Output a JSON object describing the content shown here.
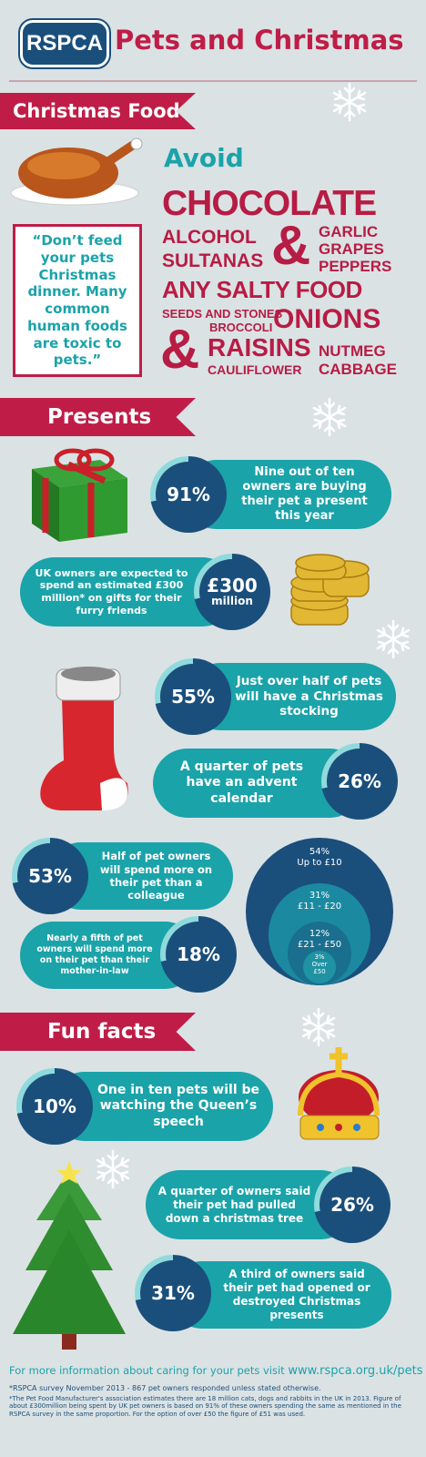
{
  "header": {
    "logo": "RSPCA",
    "title": "Pets and Christmas"
  },
  "food": {
    "heading": "Christmas Food",
    "avoid": "Avoid",
    "quote": "“Don’t feed your pets Christmas dinner. Many common human foods are toxic to pets.”",
    "words": [
      "CHOCOLATE",
      "ALCOHOL",
      "SULTANAS",
      "&",
      "GARLIC",
      "GRAPES",
      "PEPPERS",
      "ANY SALTY FOOD",
      "SEEDS AND STONES",
      "BROCCOLI",
      "ONIONS",
      "&",
      "RAISINS",
      "NUTMEG",
      "CAULIFLOWER",
      "CABBAGE"
    ]
  },
  "presents": {
    "heading": "Presents",
    "stats": [
      {
        "value": "91%",
        "text": "Nine out of ten owners are buying their pet a present this year"
      },
      {
        "value": "£300",
        "value_sub": "million",
        "text": "UK owners are expected to spend an estimated £300 million* on gifts for their furry friends"
      },
      {
        "value": "55%",
        "text": "Just over half of pets will have a Christmas stocking"
      },
      {
        "value": "26%",
        "text": "A quarter of pets have an advent calendar"
      },
      {
        "value": "53%",
        "text": "Half of pet owners will spend more on their pet than a colleague"
      },
      {
        "value": "18%",
        "text": "Nearly a fifth of pet owners will spend more on their pet than their mother-in-law"
      }
    ],
    "spending": [
      {
        "percent": "54%",
        "label": "Up to £10"
      },
      {
        "percent": "31%",
        "label": "£11 - £20"
      },
      {
        "percent": "12%",
        "label": "£21 - £50"
      },
      {
        "percent": "3%",
        "label": "Over £50"
      }
    ]
  },
  "fun_facts": {
    "heading": "Fun facts",
    "stats": [
      {
        "value": "10%",
        "text": "One in ten pets will be watching the Queen’s speech"
      },
      {
        "value": "26%",
        "text": "A quarter of owners said their pet had pulled down a christmas tree"
      },
      {
        "value": "31%",
        "text": "A third of owners said their pet had opened or destroyed Christmas presents"
      }
    ]
  },
  "footer": {
    "info": "For more information about caring for your pets visit",
    "url": "www.rspca.org.uk/pets",
    "notes": [
      "*RSPCA survey November 2013 - 867 pet owners responded unless stated otherwise.",
      "*The Pet Food Manufacturer's association estimates there are 18 million cats, dogs and rabbits in the UK in 2013. Figure of about £300million being spent by UK pet owners is based on 91% of these owners spending the same as mentioned in the RSPCA survey in the same proportion. For the option of over £50 the figure of £51 was used."
    ]
  }
}
